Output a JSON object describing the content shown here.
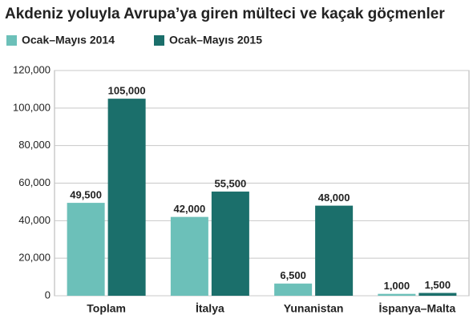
{
  "chart_data": {
    "type": "bar",
    "title": "Akdeniz yoluyla Avrupa’ya giren mülteci ve kaçak göçmenler",
    "categories": [
      "Toplam",
      "İtalya",
      "Yunanistan",
      "İspanya–Malta"
    ],
    "series": [
      {
        "name": "Ocak–Mayıs 2014",
        "color": "#6cc0b9",
        "values": [
          49500,
          42000,
          6500,
          1000
        ],
        "value_labels": [
          "49,500",
          "42,000",
          "6,500",
          "1,000"
        ]
      },
      {
        "name": "Ocak–Mayıs 2015",
        "color": "#1b6f6b",
        "values": [
          105000,
          55500,
          48000,
          1500
        ],
        "value_labels": [
          "105,000",
          "55,500",
          "48,000",
          "1,500"
        ]
      }
    ],
    "ylim": [
      0,
      120000
    ],
    "yticks": [
      0,
      {
        "value": 20000,
        "label": "20,000"
      },
      {
        "value": 40000,
        "label": "40,000"
      },
      {
        "value": 60000,
        "label": "60,000"
      },
      {
        "value": 80000,
        "label": "80,000"
      },
      {
        "value": 100000,
        "label": "100,000"
      },
      {
        "value": 120000,
        "label": "120,000"
      }
    ],
    "grid": true
  }
}
